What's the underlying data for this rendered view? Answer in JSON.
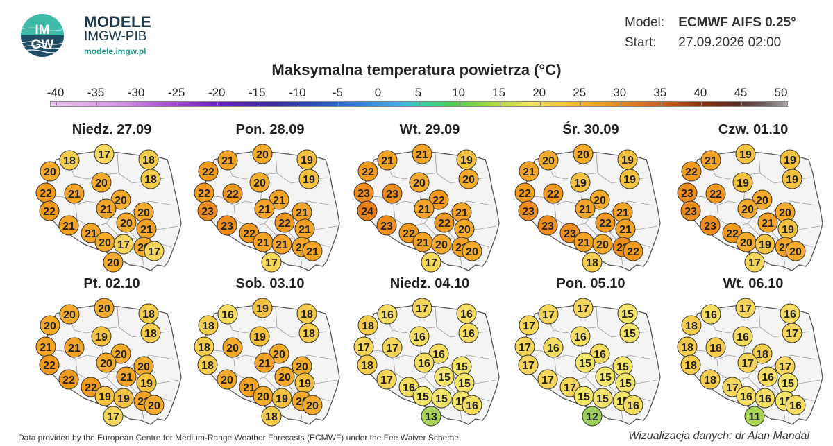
{
  "header": {
    "brand_title": "MODELE",
    "brand_sub": "IMGW-PIB",
    "brand_url": "modele.imgw.pl",
    "logo_text_top": "IM",
    "logo_text_bottom": "GW",
    "model_label": "Model:",
    "model_value": "ECMWF AIFS 0.25°",
    "start_label": "Start:",
    "start_value": "27.09.2026 02:00",
    "title": "Maksymalna temperatura powietrza (°C)"
  },
  "colorbar": {
    "ticks": [
      "-40",
      "-35",
      "-30",
      "-25",
      "-20",
      "-15",
      "-10",
      "-5",
      "0",
      "5",
      "10",
      "15",
      "20",
      "25",
      "30",
      "35",
      "40",
      "45",
      "50"
    ]
  },
  "maps": [
    {
      "day": "Niedz. 27.09",
      "values": [
        18,
        17,
        18,
        20,
        20,
        18,
        22,
        21,
        20,
        22,
        21,
        20,
        21,
        21,
        20,
        20,
        17,
        21,
        20,
        20,
        17
      ]
    },
    {
      "day": "Pon. 28.09",
      "values": [
        21,
        20,
        19,
        22,
        20,
        19,
        22,
        22,
        21,
        23,
        21,
        21,
        23,
        22,
        22,
        21,
        21,
        21,
        21,
        17,
        21
      ]
    },
    {
      "day": "Wt. 29.09",
      "values": [
        21,
        21,
        19,
        22,
        20,
        20,
        23,
        23,
        22,
        24,
        21,
        21,
        23,
        22,
        22,
        21,
        20,
        20,
        21,
        17,
        20
      ]
    },
    {
      "day": "Śr. 30.09",
      "values": [
        20,
        20,
        19,
        21,
        19,
        19,
        22,
        22,
        20,
        23,
        21,
        21,
        23,
        23,
        22,
        21,
        20,
        21,
        23,
        18,
        22
      ]
    },
    {
      "day": "Czw. 01.10",
      "values": [
        21,
        19,
        19,
        22,
        19,
        19,
        23,
        22,
        20,
        23,
        20,
        20,
        23,
        22,
        21,
        20,
        19,
        19,
        21,
        17,
        20
      ]
    },
    {
      "day": "Pt. 02.10",
      "values": [
        20,
        20,
        18,
        20,
        19,
        18,
        21,
        21,
        20,
        22,
        20,
        20,
        22,
        22,
        21,
        19,
        19,
        19,
        21,
        17,
        20
      ]
    },
    {
      "day": "Sob. 03.10",
      "values": [
        16,
        19,
        18,
        18,
        19,
        18,
        18,
        20,
        20,
        18,
        21,
        20,
        20,
        21,
        20,
        20,
        19,
        19,
        20,
        18,
        20
      ]
    },
    {
      "day": "Niedz. 04.10",
      "values": [
        16,
        17,
        16,
        18,
        16,
        16,
        17,
        17,
        16,
        18,
        16,
        15,
        17,
        16,
        15,
        15,
        15,
        15,
        15,
        13,
        16
      ]
    },
    {
      "day": "Pon. 05.10",
      "values": [
        17,
        17,
        15,
        17,
        16,
        15,
        17,
        16,
        16,
        17,
        15,
        15,
        17,
        17,
        15,
        15,
        15,
        15,
        15,
        12,
        16
      ]
    },
    {
      "day": "Wt. 06.10",
      "values": [
        16,
        17,
        16,
        18,
        16,
        17,
        18,
        18,
        18,
        18,
        17,
        17,
        18,
        17,
        16,
        16,
        16,
        15,
        15,
        11,
        16
      ]
    }
  ],
  "footer": {
    "source": "Data provided by the European Centre for Medium-Range Weather Forecasts (ECMWF) under the Fee Waiver Scheme",
    "credit": "Wizualizacja danych: dr Alan Mandal"
  }
}
